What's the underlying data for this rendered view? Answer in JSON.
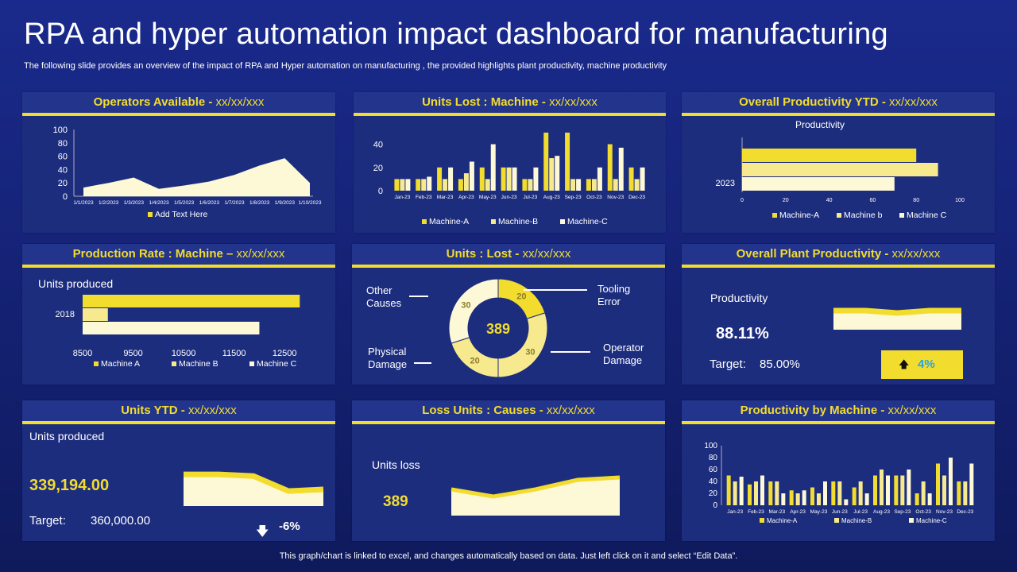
{
  "header": {
    "title": "RPA and hyper automation impact dashboard for manufacturing",
    "subtitle": "The following slide provides an overview of the impact of RPA and Hyper automation  on manufacturing , the provided highlights plant productivity, machine productivity"
  },
  "footer": "This graph/chart is linked to excel,  and changes automatically based on data. Just left click on it and select “Edit Data”.",
  "colors": {
    "yellow": "#f2dc2d",
    "yellow_mid": "#f7ea8e",
    "cream": "#fdf8d6",
    "bg": "#1d2d7e"
  },
  "panels": {
    "operators": {
      "title": "Operators Available - ",
      "date": "xx/xx/xxx"
    },
    "units_lost_machine": {
      "title": "Units Lost : Machine - ",
      "date": "xx/xx/xxx"
    },
    "overall_productivity_ytd": {
      "title": "Overall Productivity YTD - ",
      "date": "xx/xx/xxx"
    },
    "production_rate": {
      "title": "Production Rate : Machine – ",
      "date": "xx/xx/xxx"
    },
    "units_lost": {
      "title": "Units : Lost - ",
      "date": "xx/xx/xxx"
    },
    "plant_productivity": {
      "title": "Overall Plant Productivity - ",
      "date": "xx/xx/xxx"
    },
    "units_ytd": {
      "title": "Units YTD - ",
      "date": "xx/xx/xxx"
    },
    "loss_units": {
      "title": "Loss Units : Causes - ",
      "date": "xx/xx/xxx"
    },
    "productivity_machine": {
      "title": "Productivity by Machine - ",
      "date": "xx/xx/xxx"
    }
  },
  "kpis": {
    "plant": {
      "label": "Productivity",
      "value": "88.11%",
      "target_label": "Target:",
      "target_value": "85.00%",
      "change": "4%"
    },
    "units_ytd": {
      "label": "Units produced",
      "value": "339,194.00",
      "target_label": "Target:",
      "target_value": "360,000.00",
      "change": "-6%"
    },
    "loss": {
      "label": "Units loss",
      "value": "389"
    }
  },
  "chart_data": [
    {
      "id": "operators",
      "type": "area",
      "categories": [
        "1/1/2023",
        "1/2/2023",
        "1/3/2023",
        "1/4/2023",
        "1/5/2023",
        "1/6/2023",
        "1/7/2023",
        "1/8/2023",
        "1/9/2023",
        "1/10/2023"
      ],
      "series": [
        {
          "name": "Add Text Here",
          "values": [
            13,
            20,
            28,
            11,
            16,
            22,
            32,
            46,
            57,
            20
          ]
        }
      ],
      "y_ticks": [
        "0",
        "20",
        "40",
        "60",
        "80",
        "100"
      ],
      "ylim": [
        0,
        100
      ],
      "legend": [
        "Add Text Here"
      ]
    },
    {
      "id": "units_lost_machine",
      "type": "bar",
      "categories": [
        "Jan-23",
        "Feb-23",
        "Mar-23",
        "Apr-23",
        "May-23",
        "Jun-23",
        "Jul-23",
        "Aug-23",
        "Sep-23",
        "Oct-23",
        "Nov-23",
        "Dec-23"
      ],
      "series": [
        {
          "name": "Machine-A",
          "values": [
            10,
            10,
            20,
            10,
            20,
            20,
            10,
            50,
            50,
            10,
            40,
            20
          ]
        },
        {
          "name": "Machine-B",
          "values": [
            10,
            10,
            10,
            15,
            10,
            20,
            10,
            28,
            10,
            10,
            10,
            10
          ]
        },
        {
          "name": "Machine-C",
          "values": [
            10,
            12,
            20,
            25,
            40,
            20,
            20,
            30,
            10,
            20,
            37,
            20
          ]
        }
      ],
      "y_ticks": [
        "0",
        "20",
        "40"
      ],
      "ylim": [
        0,
        52
      ],
      "legend": [
        "Machine-A",
        "Machine-B",
        "Machine-C"
      ]
    },
    {
      "id": "overall_productivity_ytd",
      "type": "bar",
      "orientation": "horizontal",
      "title": "Productivity",
      "categories": [
        "2023"
      ],
      "series": [
        {
          "name": "Machine-A",
          "values": [
            80
          ]
        },
        {
          "name": "Machine b",
          "values": [
            90
          ]
        },
        {
          "name": "Machine C",
          "values": [
            70
          ]
        }
      ],
      "x_ticks": [
        "0",
        "20",
        "40",
        "60",
        "80",
        "100"
      ],
      "xlim": [
        0,
        100
      ],
      "legend": [
        "Machine-A",
        "Machine b",
        "Machine C"
      ]
    },
    {
      "id": "production_rate",
      "type": "bar",
      "orientation": "horizontal",
      "title": "Units produced",
      "categories": [
        "2018"
      ],
      "series": [
        {
          "name": "Machine A",
          "values": [
            12800
          ]
        },
        {
          "name": "Machine B",
          "values": [
            9000
          ]
        },
        {
          "name": "Machine C",
          "values": [
            12000
          ]
        }
      ],
      "x_ticks": [
        "8500",
        "9500",
        "10500",
        "11500",
        "12500"
      ],
      "xlim": [
        8500,
        13000
      ],
      "legend": [
        "Machine A",
        "Machine B",
        "Machine C"
      ]
    },
    {
      "id": "units_lost_donut",
      "type": "pie",
      "total": "389",
      "slices": [
        {
          "name": "Tooling Error",
          "value": 20,
          "label": "20"
        },
        {
          "name": "Operator Damage",
          "value": 30,
          "label": "30"
        },
        {
          "name": "Physical Damage",
          "value": 20,
          "label": "20"
        },
        {
          "name": "Other Causes",
          "value": 30,
          "label": "30"
        }
      ],
      "labels": {
        "other": "Other\nCauses",
        "tooling": "Tooling\nError",
        "physical": "Physical\nDamage",
        "operator": "Operator\nDamage"
      }
    },
    {
      "id": "productivity_machine",
      "type": "bar",
      "categories": [
        "Jan-23",
        "Feb-23",
        "Mar-23",
        "Apr-23",
        "May-23",
        "Jun-23",
        "Jul-23",
        "Aug-23",
        "Sep-23",
        "Oct-23",
        "Nov-23",
        "Dec-23"
      ],
      "series": [
        {
          "name": "Machine-A",
          "values": [
            50,
            35,
            40,
            25,
            30,
            40,
            30,
            50,
            50,
            20,
            70,
            40
          ]
        },
        {
          "name": "Machine-B",
          "values": [
            40,
            40,
            40,
            20,
            20,
            40,
            40,
            60,
            50,
            40,
            50,
            40
          ]
        },
        {
          "name": "Machine-C",
          "values": [
            48,
            50,
            20,
            25,
            40,
            10,
            20,
            50,
            60,
            20,
            80,
            70
          ]
        }
      ],
      "y_ticks": [
        "0",
        "20",
        "40",
        "60",
        "80",
        "100"
      ],
      "ylim": [
        0,
        100
      ],
      "legend": [
        "Machine-A",
        "Machine-B",
        "Machine-C"
      ]
    },
    {
      "id": "plant_sparkline",
      "type": "area",
      "series": [
        {
          "name": "Productivity",
          "values": [
            80,
            80,
            70,
            80,
            80
          ]
        }
      ],
      "ylim": [
        0,
        100
      ]
    },
    {
      "id": "units_ytd_sparkline",
      "type": "area",
      "series": [
        {
          "name": "Units produced",
          "values": [
            95,
            95,
            90,
            45,
            50
          ]
        }
      ],
      "ylim": [
        0,
        100
      ]
    },
    {
      "id": "loss_sparkline",
      "type": "area",
      "series": [
        {
          "name": "Units loss",
          "values": [
            55,
            40,
            55,
            75,
            80
          ]
        }
      ],
      "ylim": [
        0,
        100
      ]
    }
  ]
}
